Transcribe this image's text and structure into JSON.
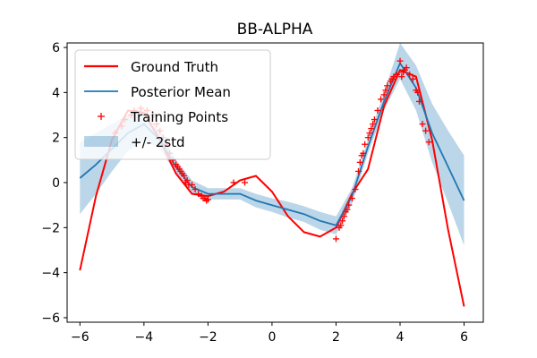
{
  "chart_data": {
    "type": "line",
    "title": "BB-ALPHA",
    "xlabel": "",
    "ylabel": "",
    "xlim": [
      -6.4,
      6.6
    ],
    "ylim": [
      -6.2,
      6.2
    ],
    "xticks": [
      -6,
      -4,
      -2,
      0,
      2,
      4,
      6
    ],
    "yticks": [
      -6,
      -4,
      -2,
      0,
      2,
      4,
      6
    ],
    "tick_labels_x": [
      "−6",
      "−4",
      "−2",
      "0",
      "2",
      "4",
      "6"
    ],
    "tick_labels_y": [
      "−6",
      "−4",
      "−2",
      "0",
      "2",
      "4",
      "6"
    ],
    "grid": false,
    "legend_position": "top-left",
    "legend": [
      "Ground Truth",
      "Posterior Mean",
      "Training Points",
      "+/- 2std"
    ],
    "colors": {
      "ground_truth": "#ff0000",
      "posterior_mean": "#1f77b4",
      "band": "#1f77b4",
      "training_points": "#ff0000"
    },
    "series": [
      {
        "name": "Ground Truth",
        "kind": "line",
        "x": [
          -6,
          -5.5,
          -5,
          -4.5,
          -4,
          -3.5,
          -3,
          -2.5,
          -2,
          -1.5,
          -1,
          -0.5,
          0,
          0.5,
          1,
          1.5,
          2,
          2.5,
          3,
          3.5,
          4,
          4.5,
          5,
          5.5,
          6
        ],
        "y": [
          -3.9,
          -0.6,
          1.9,
          3.2,
          3.1,
          1.9,
          0.4,
          -0.5,
          -0.6,
          -0.4,
          0.1,
          0.3,
          -0.4,
          -1.5,
          -2.2,
          -2.4,
          -2.0,
          -0.5,
          0.6,
          3.4,
          5.0,
          4.7,
          1.9,
          -2.1,
          -5.5
        ]
      },
      {
        "name": "Posterior Mean",
        "kind": "line",
        "x": [
          -6,
          -5.5,
          -5,
          -4.5,
          -4,
          -3.5,
          -3,
          -2.5,
          -2,
          -1.5,
          -1,
          -0.5,
          0,
          0.5,
          1,
          1.5,
          2,
          2.5,
          3,
          3.5,
          4,
          4.5,
          5,
          5.5,
          6
        ],
        "y": [
          0.2,
          0.8,
          1.5,
          2.2,
          2.6,
          1.9,
          0.7,
          -0.2,
          -0.5,
          -0.5,
          -0.5,
          -0.8,
          -1.0,
          -1.2,
          -1.4,
          -1.7,
          -1.9,
          -0.6,
          1.6,
          3.6,
          5.3,
          4.2,
          2.2,
          0.7,
          -0.8
        ]
      },
      {
        "name": "+/- 2std",
        "kind": "band",
        "x": [
          -6,
          -5.5,
          -5,
          -4.5,
          -4,
          -3.5,
          -3,
          -2.5,
          -2,
          -1.5,
          -1,
          -0.5,
          0,
          0.5,
          1,
          1.5,
          2,
          2.5,
          3,
          3.5,
          4,
          4.5,
          5,
          5.5,
          6
        ],
        "lower": [
          -1.4,
          -0.5,
          0.5,
          1.4,
          1.9,
          1.5,
          0.4,
          -0.5,
          -0.75,
          -0.75,
          -0.75,
          -1.1,
          -1.3,
          -1.55,
          -1.75,
          -2.1,
          -2.3,
          -0.95,
          1.3,
          3.2,
          4.6,
          3.2,
          0.9,
          -0.9,
          -2.8
        ],
        "upper": [
          1.8,
          2.2,
          2.6,
          3.0,
          3.3,
          2.3,
          1.0,
          0.1,
          -0.25,
          -0.25,
          -0.25,
          -0.5,
          -0.7,
          -0.85,
          -1.05,
          -1.3,
          -1.5,
          -0.25,
          1.9,
          4.0,
          6.2,
          5.2,
          3.5,
          2.3,
          1.2
        ]
      },
      {
        "name": "Training Points",
        "kind": "scatter",
        "x": [
          -4.9,
          -4.7,
          -4.6,
          -4.4,
          -4.3,
          -4.1,
          -3.9,
          -3.7,
          -3.6,
          -3.5,
          -3.4,
          -3.3,
          -3.2,
          -3.1,
          -3.0,
          -2.95,
          -2.9,
          -2.85,
          -2.8,
          -2.75,
          -2.7,
          -2.65,
          -2.6,
          -2.5,
          -2.4,
          -2.3,
          -2.2,
          -2.15,
          -2.1,
          -2.05,
          -2.0,
          -1.2,
          -0.85,
          2.0,
          2.1,
          2.15,
          2.2,
          2.25,
          2.3,
          2.35,
          2.4,
          2.5,
          2.6,
          2.7,
          2.75,
          2.8,
          2.85,
          2.9,
          3.0,
          3.05,
          3.1,
          3.15,
          3.2,
          3.3,
          3.4,
          3.5,
          3.55,
          3.6,
          3.7,
          3.75,
          3.8,
          3.9,
          4.0,
          4.05,
          4.1,
          4.15,
          4.2,
          4.3,
          4.4,
          4.5,
          4.55,
          4.6,
          4.7,
          4.8,
          4.9
        ],
        "y": [
          2.2,
          2.5,
          2.8,
          3.0,
          3.2,
          3.3,
          3.2,
          3.0,
          2.6,
          2.3,
          2.0,
          1.7,
          1.3,
          1.0,
          0.8,
          0.7,
          0.6,
          0.5,
          0.4,
          0.3,
          0.0,
          0.1,
          -0.1,
          -0.1,
          -0.3,
          -0.5,
          -0.6,
          -0.7,
          -0.7,
          -0.8,
          -0.75,
          0.0,
          0.0,
          -2.5,
          -2.0,
          -1.9,
          -1.7,
          -1.5,
          -1.3,
          -1.2,
          -1.0,
          -0.7,
          -0.3,
          0.5,
          0.9,
          1.2,
          1.3,
          1.7,
          2.0,
          2.2,
          2.4,
          2.6,
          2.8,
          3.2,
          3.7,
          3.9,
          4.1,
          4.3,
          4.5,
          4.6,
          4.7,
          4.8,
          5.4,
          4.7,
          4.9,
          5.0,
          5.1,
          4.8,
          4.6,
          4.1,
          4.0,
          3.6,
          2.6,
          2.3,
          1.8
        ]
      }
    ]
  }
}
